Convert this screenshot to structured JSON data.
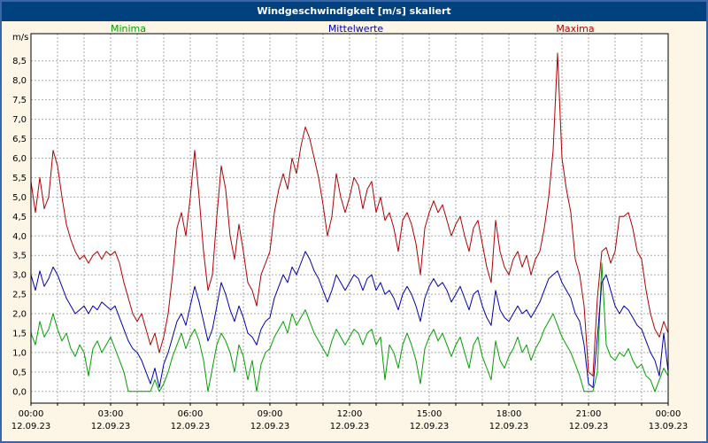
{
  "window": {
    "title": "Windgeschwindigkeit [m/s] skaliert"
  },
  "colors": {
    "background": "#fdf5e6",
    "window_border": "#3a66a7",
    "titlebar": "#00417e",
    "title_text": "#ffffff",
    "plot_bg": "#ffffff",
    "grid": "#aaaaaa",
    "axis": "#000000",
    "minima": "#00a000",
    "mittelwerte": "#0000b0",
    "maxima": "#b00000"
  },
  "legend": [
    {
      "label": "Minima",
      "color": "#00a000"
    },
    {
      "label": "Mittelwerte",
      "color": "#0000b0"
    },
    {
      "label": "Maxima",
      "color": "#b00000"
    }
  ],
  "y_axis": {
    "unit": "m/s"
  },
  "chart_data": {
    "type": "line",
    "title": "Windgeschwindigkeit [m/s] skaliert",
    "ylabel": "m/s",
    "ylim": [
      0,
      8.75
    ],
    "y_tick_step": 0.5,
    "y_tick_labels": [
      "8,5",
      "8,0",
      "7,5",
      "7,0",
      "6,5",
      "6,0",
      "5,5",
      "5,0",
      "4,5",
      "4,0",
      "3,5",
      "3,0",
      "2,5",
      "2,0",
      "1,5",
      "1,0",
      "0,5",
      "0,0"
    ],
    "x_range_hours": [
      0,
      24
    ],
    "x_sample_interval_minutes": 10,
    "x_tick_labels": [
      "00:00",
      "03:00",
      "06:00",
      "09:00",
      "12:00",
      "15:00",
      "18:00",
      "21:00",
      "00:00"
    ],
    "x_date_labels": [
      "12.09.23",
      "12.09.23",
      "12.09.23",
      "12.09.23",
      "12.09.23",
      "12.09.23",
      "12.09.23",
      "12.09.23",
      "13.09.23"
    ],
    "grid": true,
    "series": [
      {
        "name": "Minima",
        "color": "#00a000",
        "values": [
          1.5,
          1.2,
          1.8,
          1.4,
          1.6,
          2.0,
          1.6,
          1.3,
          1.5,
          1.1,
          0.9,
          1.2,
          1.0,
          0.4,
          1.1,
          1.3,
          1.0,
          1.2,
          1.4,
          1.1,
          0.8,
          0.5,
          0.0,
          0.0,
          0.0,
          0.0,
          0.0,
          0.0,
          0.3,
          0.0,
          0.2,
          0.5,
          0.9,
          1.2,
          1.5,
          1.1,
          1.4,
          1.6,
          1.3,
          0.8,
          0.0,
          0.6,
          1.2,
          1.5,
          1.3,
          1.0,
          0.5,
          1.2,
          0.9,
          0.3,
          0.8,
          0.0,
          0.7,
          1.0,
          1.1,
          1.4,
          1.6,
          1.8,
          1.5,
          2.0,
          1.7,
          1.9,
          2.1,
          1.8,
          1.5,
          1.3,
          1.1,
          0.9,
          1.3,
          1.6,
          1.4,
          1.2,
          1.4,
          1.6,
          1.5,
          1.2,
          1.5,
          1.6,
          1.2,
          1.4,
          0.3,
          1.2,
          1.0,
          0.6,
          1.2,
          1.5,
          1.2,
          0.8,
          0.2,
          1.1,
          1.4,
          1.6,
          1.3,
          1.5,
          1.2,
          0.9,
          1.2,
          1.4,
          1.0,
          0.6,
          1.2,
          1.4,
          0.9,
          0.6,
          0.3,
          1.3,
          0.8,
          0.6,
          0.9,
          1.1,
          1.4,
          1.0,
          1.2,
          0.8,
          1.1,
          1.3,
          1.6,
          1.8,
          2.0,
          1.7,
          1.4,
          1.2,
          1.0,
          0.7,
          0.4,
          0.0,
          0.0,
          0.0,
          0.5,
          3.3,
          1.2,
          0.9,
          0.8,
          1.0,
          0.9,
          1.1,
          0.8,
          0.6,
          0.7,
          0.4,
          0.3,
          0.0,
          0.3,
          0.6,
          0.4
        ]
      },
      {
        "name": "Mittelwerte",
        "color": "#0000b0",
        "values": [
          3.0,
          2.6,
          3.1,
          2.7,
          2.9,
          3.2,
          3.0,
          2.7,
          2.4,
          2.2,
          2.0,
          2.1,
          2.2,
          2.0,
          2.2,
          2.1,
          2.3,
          2.2,
          2.1,
          2.2,
          1.9,
          1.6,
          1.3,
          1.1,
          1.0,
          0.8,
          0.5,
          0.2,
          0.6,
          0.1,
          0.7,
          1.0,
          1.4,
          1.8,
          2.0,
          1.7,
          2.2,
          2.7,
          2.3,
          1.8,
          1.3,
          1.6,
          2.2,
          2.8,
          2.5,
          2.1,
          1.8,
          2.2,
          1.9,
          1.5,
          1.4,
          1.2,
          1.6,
          1.8,
          1.9,
          2.4,
          2.7,
          3.0,
          2.8,
          3.2,
          3.0,
          3.3,
          3.6,
          3.4,
          3.1,
          2.9,
          2.6,
          2.3,
          2.6,
          3.0,
          2.8,
          2.6,
          2.8,
          3.0,
          2.9,
          2.6,
          2.9,
          3.0,
          2.6,
          2.8,
          2.5,
          2.6,
          2.4,
          2.1,
          2.5,
          2.7,
          2.5,
          2.2,
          1.8,
          2.4,
          2.7,
          2.9,
          2.7,
          2.8,
          2.6,
          2.3,
          2.5,
          2.7,
          2.4,
          2.1,
          2.5,
          2.6,
          2.2,
          1.9,
          1.7,
          2.6,
          2.1,
          1.9,
          1.8,
          2.0,
          2.2,
          2.0,
          2.1,
          1.9,
          2.1,
          2.3,
          2.6,
          2.9,
          3.0,
          3.1,
          2.8,
          2.6,
          2.4,
          2.0,
          1.8,
          1.2,
          0.2,
          0.1,
          1.4,
          2.8,
          3.0,
          2.6,
          2.2,
          2.0,
          2.2,
          2.1,
          1.9,
          1.7,
          1.6,
          1.3,
          1.0,
          0.8,
          0.4,
          1.5,
          0.5
        ]
      },
      {
        "name": "Maxima",
        "color": "#b00000",
        "values": [
          5.4,
          4.6,
          5.5,
          4.7,
          5.0,
          6.2,
          5.8,
          5.0,
          4.3,
          3.9,
          3.6,
          3.4,
          3.5,
          3.3,
          3.5,
          3.6,
          3.4,
          3.6,
          3.5,
          3.6,
          3.3,
          2.8,
          2.4,
          2.0,
          1.8,
          2.0,
          1.6,
          1.2,
          1.5,
          1.0,
          1.4,
          2.0,
          3.0,
          4.2,
          4.6,
          4.0,
          5.0,
          6.2,
          5.0,
          3.6,
          2.6,
          3.0,
          4.5,
          5.8,
          5.2,
          4.0,
          3.4,
          4.3,
          3.6,
          2.8,
          2.6,
          2.2,
          3.0,
          3.3,
          3.6,
          4.6,
          5.2,
          5.6,
          5.2,
          6.0,
          5.6,
          6.3,
          6.8,
          6.5,
          6.0,
          5.5,
          4.8,
          4.0,
          4.5,
          5.6,
          5.0,
          4.6,
          5.0,
          5.5,
          5.3,
          4.7,
          5.2,
          5.4,
          4.6,
          5.0,
          4.4,
          4.6,
          4.2,
          3.6,
          4.4,
          4.6,
          4.3,
          3.8,
          3.0,
          4.2,
          4.6,
          4.9,
          4.6,
          4.8,
          4.4,
          4.0,
          4.3,
          4.5,
          4.0,
          3.6,
          4.2,
          4.4,
          3.8,
          3.2,
          2.8,
          4.4,
          3.6,
          3.2,
          3.0,
          3.4,
          3.6,
          3.2,
          3.5,
          3.0,
          3.4,
          3.6,
          4.2,
          5.0,
          6.2,
          8.7,
          6.0,
          5.2,
          4.6,
          3.4,
          3.0,
          2.2,
          0.5,
          0.4,
          2.4,
          3.6,
          3.7,
          3.3,
          3.6,
          4.5,
          4.5,
          4.6,
          4.2,
          3.6,
          3.4,
          2.6,
          2.0,
          1.6,
          1.4,
          1.8,
          1.5
        ]
      }
    ]
  }
}
